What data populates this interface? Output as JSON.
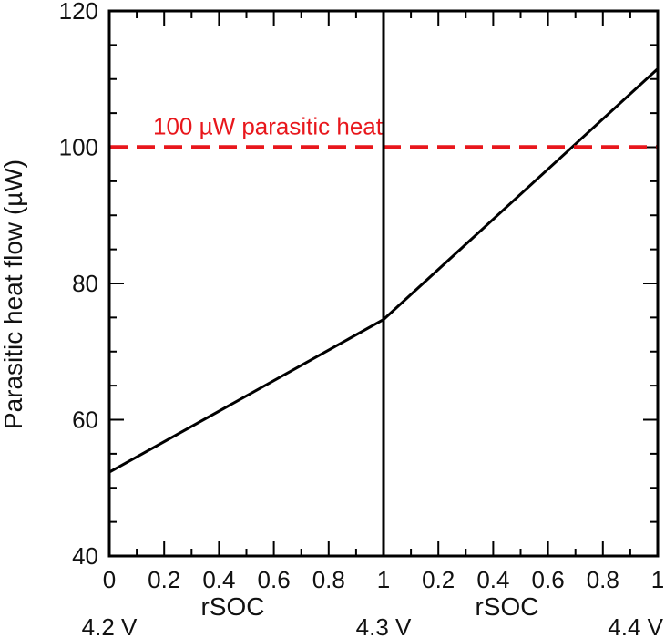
{
  "chart_data": {
    "type": "line",
    "ylabel": "Parasitic heat flow (µW)",
    "ylim": [
      40,
      120
    ],
    "yticks": [
      40,
      60,
      80,
      100,
      120
    ],
    "grid": false,
    "panels": [
      {
        "xlabel": "rSOC",
        "xlim": [
          0,
          1
        ],
        "xticks": [
          "0",
          "0.2",
          "0.4",
          "0.6",
          "0.8",
          "1"
        ],
        "start_voltage": "4.2 V",
        "end_voltage": "4.3 V",
        "series": [
          {
            "x": [
              0,
              1
            ],
            "y": [
              52.3,
              74.7
            ],
            "color": "#000000"
          }
        ]
      },
      {
        "xlabel": "rSOC",
        "xlim": [
          0,
          1
        ],
        "xticks": [
          "0.2",
          "0.4",
          "0.6",
          "0.8",
          "1"
        ],
        "start_voltage": "",
        "end_voltage": "4.4 V",
        "series": [
          {
            "x": [
              0,
              1
            ],
            "y": [
              74.7,
              111.5
            ],
            "color": "#000000"
          }
        ]
      }
    ],
    "reference_line": {
      "y": 100,
      "label": "100 µW parasitic heat",
      "color": "#e8171c",
      "style": "dashed"
    }
  }
}
